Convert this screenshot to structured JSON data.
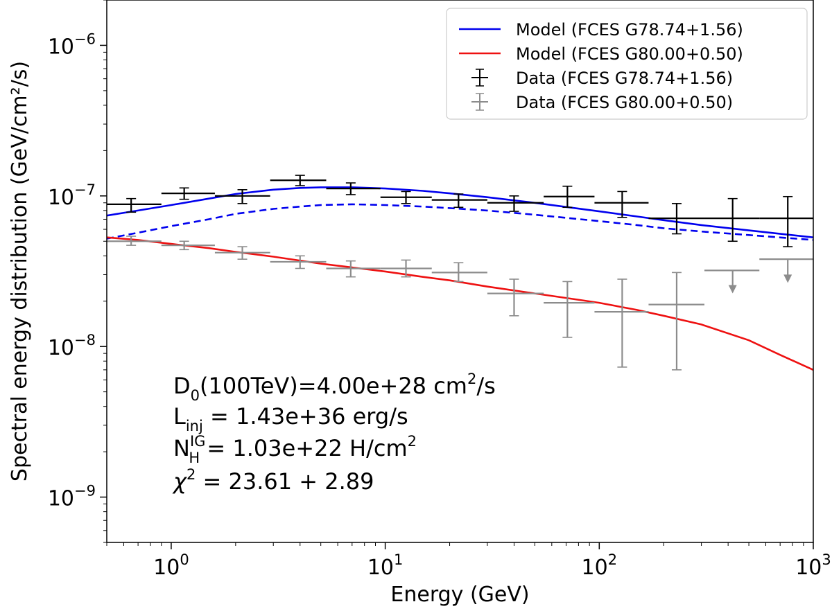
{
  "chart_data": {
    "type": "line",
    "title": "",
    "xlabel": "Energy (GeV)",
    "ylabel": "Spectral energy distribution (GeV/cm²/s)",
    "xscale": "log",
    "yscale": "log",
    "xlim": [
      0.5,
      1000
    ],
    "ylim": [
      5e-10,
      2e-06
    ],
    "x_tick_exponents": [
      "0",
      "1",
      "2",
      "3"
    ],
    "y_tick_exponents": [
      "-9",
      "-8",
      "-7",
      "-6"
    ],
    "tick_base": "10",
    "grid": false,
    "legend_position": "top-right",
    "colors": {
      "model_1": "#0000ee",
      "model_2": "#ee1111",
      "data_1": "#000000",
      "data_2": "#8c8c8c"
    },
    "legend": [
      {
        "label": "Model (FCES G78.74+1.56)",
        "kind": "line",
        "color": "#0000ee"
      },
      {
        "label": "Model (FCES G80.00+0.50)",
        "kind": "line",
        "color": "#ee1111"
      },
      {
        "label": "Data (FCES G78.74+1.56)",
        "kind": "errorbar",
        "color": "#000000"
      },
      {
        "label": "Data (FCES G80.00+0.50)",
        "kind": "errorbar",
        "color": "#8c8c8c"
      }
    ],
    "series": [
      {
        "name": "Model (FCES G78.74+1.56)",
        "color": "#0000ee",
        "style": "solid",
        "x": [
          0.5,
          0.7,
          1.0,
          1.5,
          2.0,
          3.0,
          4.0,
          5.0,
          7.0,
          10,
          15,
          20,
          30,
          50,
          100,
          150,
          200,
          300,
          500,
          1000
        ],
        "y": [
          7.4e-08,
          8e-08,
          8.7e-08,
          9.6e-08,
          1.03e-07,
          1.1e-07,
          1.13e-07,
          1.14e-07,
          1.14e-07,
          1.12e-07,
          1.08e-07,
          1.04e-07,
          9.8e-08,
          9e-08,
          7.9e-08,
          7.3e-08,
          6.9e-08,
          6.4e-08,
          5.9e-08,
          5.3e-08
        ]
      },
      {
        "name": "Model (FCES G78.74+1.56) dashed component",
        "color": "#0000ee",
        "style": "dashed",
        "x": [
          0.5,
          0.7,
          1.0,
          1.5,
          2.0,
          3.0,
          4.0,
          5.0,
          7.0,
          10,
          15,
          20,
          30,
          50,
          100,
          150,
          200,
          300,
          500,
          1000
        ],
        "y": [
          5.2e-08,
          5.7e-08,
          6.3e-08,
          7e-08,
          7.6e-08,
          8.2e-08,
          8.5e-08,
          8.7e-08,
          8.8e-08,
          8.7e-08,
          8.5e-08,
          8.3e-08,
          8e-08,
          7.5e-08,
          6.8e-08,
          6.4e-08,
          6.1e-08,
          5.8e-08,
          5.5e-08,
          5.1e-08
        ]
      },
      {
        "name": "Model (FCES G80.00+0.50)",
        "color": "#ee1111",
        "style": "solid",
        "x": [
          0.5,
          0.7,
          1.0,
          1.5,
          2.0,
          3.0,
          5.0,
          7.0,
          10,
          15,
          20,
          30,
          50,
          70,
          100,
          150,
          200,
          300,
          500,
          700,
          1000
        ],
        "y": [
          5.3e-08,
          5.1e-08,
          4.8e-08,
          4.5e-08,
          4.25e-08,
          3.95e-08,
          3.55e-08,
          3.35e-08,
          3.15e-08,
          2.9e-08,
          2.75e-08,
          2.5e-08,
          2.25e-08,
          2.1e-08,
          1.95e-08,
          1.75e-08,
          1.6e-08,
          1.4e-08,
          1.1e-08,
          8.8e-09,
          7e-09
        ]
      }
    ],
    "data_points": [
      {
        "name": "Data (FCES G78.74+1.56)",
        "color": "#000000",
        "points": [
          {
            "x": 0.65,
            "xlo": 0.5,
            "xhi": 0.9,
            "y": 8.8e-08,
            "ylo": 7.8e-08,
            "yhi": 9.6e-08
          },
          {
            "x": 1.15,
            "xlo": 0.9,
            "xhi": 1.6,
            "y": 1.04e-07,
            "ylo": 9.5e-08,
            "yhi": 1.13e-07
          },
          {
            "x": 2.15,
            "xlo": 1.6,
            "xhi": 2.9,
            "y": 1e-07,
            "ylo": 8.9e-08,
            "yhi": 1.1e-07
          },
          {
            "x": 4.0,
            "xlo": 2.9,
            "xhi": 5.3,
            "y": 1.27e-07,
            "ylo": 1.17e-07,
            "yhi": 1.37e-07
          },
          {
            "x": 6.9,
            "xlo": 5.3,
            "xhi": 9.5,
            "y": 1.12e-07,
            "ylo": 1.02e-07,
            "yhi": 1.22e-07
          },
          {
            "x": 12.5,
            "xlo": 9.5,
            "xhi": 16.5,
            "y": 9.8e-08,
            "ylo": 8.9e-08,
            "yhi": 1.07e-07
          },
          {
            "x": 22.0,
            "xlo": 16.5,
            "xhi": 30,
            "y": 9.4e-08,
            "ylo": 8.4e-08,
            "yhi": 1.03e-07
          },
          {
            "x": 40.0,
            "xlo": 30,
            "xhi": 55,
            "y": 9e-08,
            "ylo": 7.9e-08,
            "yhi": 1e-07
          },
          {
            "x": 71.0,
            "xlo": 55,
            "xhi": 95,
            "y": 9.9e-08,
            "ylo": 8.4e-08,
            "yhi": 1.16e-07
          },
          {
            "x": 128.0,
            "xlo": 95,
            "xhi": 170,
            "y": 9e-08,
            "ylo": 7.2e-08,
            "yhi": 1.07e-07
          },
          {
            "x": 230.0,
            "xlo": 170,
            "xhi": 310,
            "y": 7.1e-08,
            "ylo": 5.6e-08,
            "yhi": 8.9e-08
          },
          {
            "x": 420.0,
            "xlo": 310,
            "xhi": 560,
            "y": 7.1e-08,
            "ylo": 5e-08,
            "yhi": 9.6e-08
          },
          {
            "x": 760.0,
            "xlo": 560,
            "xhi": 1000,
            "y": 7.1e-08,
            "ylo": 4.6e-08,
            "yhi": 9.9e-08
          }
        ]
      },
      {
        "name": "Data (FCES G80.00+0.50)",
        "color": "#8c8c8c",
        "points": [
          {
            "x": 0.65,
            "xlo": 0.5,
            "xhi": 0.9,
            "y": 5e-08,
            "ylo": 4.7e-08,
            "yhi": 5.4e-08
          },
          {
            "x": 1.15,
            "xlo": 0.9,
            "xhi": 1.6,
            "y": 4.7e-08,
            "ylo": 4.4e-08,
            "yhi": 5e-08
          },
          {
            "x": 2.15,
            "xlo": 1.6,
            "xhi": 2.9,
            "y": 4.2e-08,
            "ylo": 3.8e-08,
            "yhi": 4.6e-08
          },
          {
            "x": 4.0,
            "xlo": 2.9,
            "xhi": 5.3,
            "y": 3.65e-08,
            "ylo": 3.3e-08,
            "yhi": 4e-08
          },
          {
            "x": 6.9,
            "xlo": 5.3,
            "xhi": 9.5,
            "y": 3.3e-08,
            "ylo": 2.9e-08,
            "yhi": 3.7e-08
          },
          {
            "x": 12.5,
            "xlo": 9.5,
            "xhi": 16.5,
            "y": 3.3e-08,
            "ylo": 2.9e-08,
            "yhi": 3.75e-08
          },
          {
            "x": 22.0,
            "xlo": 16.5,
            "xhi": 30,
            "y": 3.1e-08,
            "ylo": 2.7e-08,
            "yhi": 3.6e-08
          },
          {
            "x": 40.0,
            "xlo": 30,
            "xhi": 55,
            "y": 2.25e-08,
            "ylo": 1.6e-08,
            "yhi": 2.8e-08
          },
          {
            "x": 71.0,
            "xlo": 55,
            "xhi": 95,
            "y": 1.95e-08,
            "ylo": 1.15e-08,
            "yhi": 2.7e-08
          },
          {
            "x": 128.0,
            "xlo": 95,
            "xhi": 170,
            "y": 1.7e-08,
            "ylo": 7.3e-09,
            "yhi": 2.8e-08
          },
          {
            "x": 230.0,
            "xlo": 170,
            "xhi": 310,
            "y": 1.9e-08,
            "ylo": 7e-09,
            "yhi": 3.1e-08
          }
        ],
        "upper_limits": [
          {
            "x": 420.0,
            "xlo": 310,
            "xhi": 560,
            "y": 3.2e-08,
            "arrow_to": 2.3e-08
          },
          {
            "x": 760.0,
            "xlo": 560,
            "xhi": 1000,
            "y": 3.8e-08,
            "arrow_to": 2.7e-08
          }
        ]
      }
    ],
    "annotations": [
      {
        "id": "d0",
        "base": "D",
        "sub": "0",
        "text": "(100TeV)=4.00e+28 cm",
        "sup": "2",
        "tail": "/s"
      },
      {
        "id": "linj",
        "base": "L",
        "sub": "inj",
        "text": " = 1.43e+36 erg/s",
        "sup": "",
        "tail": ""
      },
      {
        "id": "nh",
        "base": "N",
        "sub": "H",
        "supbase": "IG",
        "text": " = 1.03e+22 H/cm",
        "sup": "2",
        "tail": ""
      },
      {
        "id": "chi2",
        "base": "χ",
        "sub": "",
        "supbase": "2",
        "text": " = 23.61 + 2.89",
        "sup": "",
        "tail": ""
      }
    ]
  }
}
